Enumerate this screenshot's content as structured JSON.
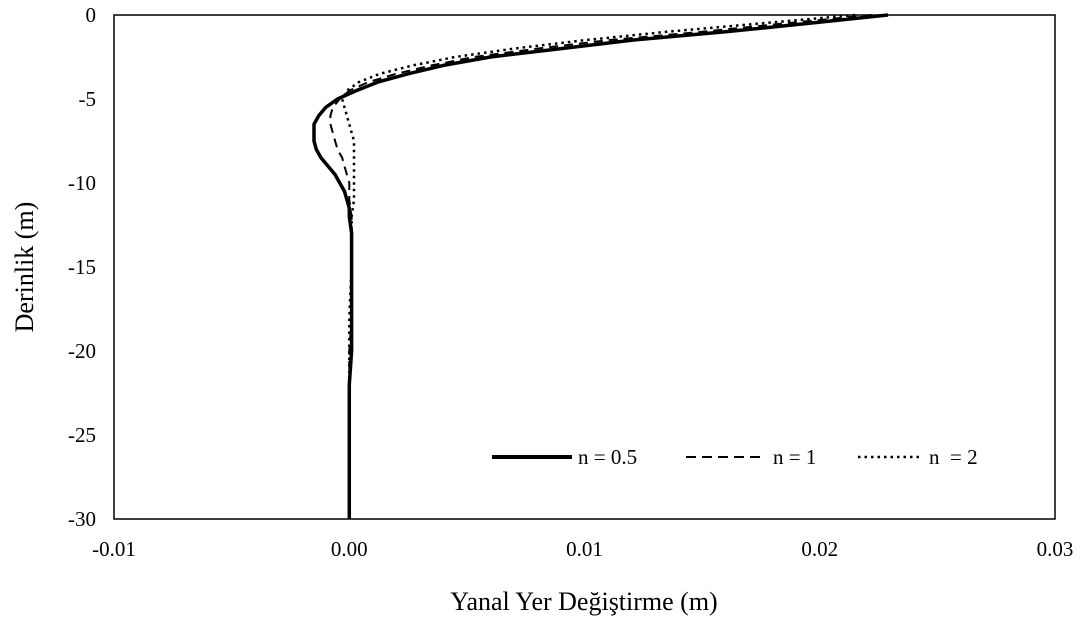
{
  "chart_data": {
    "type": "line",
    "xlabel": "Yanal Yer Değiştirme (m)",
    "ylabel": "Derinlik (m)",
    "xlim": [
      -0.01,
      0.03
    ],
    "ylim": [
      -30,
      0
    ],
    "xticks": [
      "-0.01",
      "0.00",
      "0.01",
      "0.02",
      "0.03"
    ],
    "xtick_values": [
      -0.01,
      0.0,
      0.01,
      0.02,
      0.03
    ],
    "yticks": [
      "0",
      "-5",
      "-10",
      "-15",
      "-20",
      "-25",
      "-30"
    ],
    "ytick_values": [
      0,
      -5,
      -10,
      -15,
      -20,
      -25,
      -30
    ],
    "grid": false,
    "legend_position": "bottom-right, inside plot",
    "series": [
      {
        "name": "n = 0.5",
        "style": "solid",
        "color": "#000000",
        "points": [
          [
            0.0229,
            0
          ],
          [
            0.0195,
            -0.5
          ],
          [
            0.016,
            -1
          ],
          [
            0.012,
            -1.5
          ],
          [
            0.009,
            -2
          ],
          [
            0.006,
            -2.5
          ],
          [
            0.004,
            -3
          ],
          [
            0.0025,
            -3.5
          ],
          [
            0.0012,
            -4
          ],
          [
            0.0003,
            -4.5
          ],
          [
            -0.0005,
            -5
          ],
          [
            -0.001,
            -5.5
          ],
          [
            -0.0013,
            -6
          ],
          [
            -0.0015,
            -6.5
          ],
          [
            -0.0015,
            -7
          ],
          [
            -0.0015,
            -7.5
          ],
          [
            -0.0014,
            -8
          ],
          [
            -0.0012,
            -8.5
          ],
          [
            -0.0009,
            -9
          ],
          [
            -0.0006,
            -9.5
          ],
          [
            -0.0004,
            -10
          ],
          [
            -0.0002,
            -10.5
          ],
          [
            -0.0001,
            -11
          ],
          [
            0.0,
            -11.5
          ],
          [
            0.0,
            -12
          ],
          [
            0.0001,
            -13
          ],
          [
            0.0001,
            -14
          ],
          [
            0.0001,
            -15
          ],
          [
            0.0001,
            -16
          ],
          [
            0.0001,
            -18
          ],
          [
            0.0001,
            -20
          ],
          [
            0.0,
            -22
          ],
          [
            0.0,
            -25
          ],
          [
            0.0,
            -28
          ],
          [
            0.0,
            -30
          ]
        ]
      },
      {
        "name": "n = 1",
        "style": "dashed",
        "color": "#000000",
        "points": [
          [
            0.0222,
            0
          ],
          [
            0.0185,
            -0.5
          ],
          [
            0.015,
            -1
          ],
          [
            0.011,
            -1.5
          ],
          [
            0.008,
            -2
          ],
          [
            0.0053,
            -2.5
          ],
          [
            0.0035,
            -3
          ],
          [
            0.002,
            -3.5
          ],
          [
            0.0008,
            -4
          ],
          [
            0.0,
            -4.5
          ],
          [
            -0.0004,
            -5
          ],
          [
            -0.0007,
            -5.5
          ],
          [
            -0.0008,
            -6
          ],
          [
            -0.0008,
            -6.5
          ],
          [
            -0.0007,
            -7
          ],
          [
            -0.0006,
            -7.5
          ],
          [
            -0.0005,
            -8
          ],
          [
            -0.0003,
            -8.5
          ],
          [
            -0.0002,
            -9
          ],
          [
            -0.0001,
            -9.5
          ],
          [
            0.0,
            -10
          ],
          [
            0.0,
            -11
          ],
          [
            0.0001,
            -12
          ],
          [
            0.0001,
            -13
          ],
          [
            0.0001,
            -15
          ],
          [
            0.0001,
            -18
          ],
          [
            0.0,
            -20
          ],
          [
            0.0,
            -25
          ],
          [
            0.0,
            -30
          ]
        ]
      },
      {
        "name": "n  = 2",
        "style": "dotted",
        "color": "#000000",
        "points": [
          [
            0.0215,
            0
          ],
          [
            0.0175,
            -0.5
          ],
          [
            0.0135,
            -1
          ],
          [
            0.01,
            -1.5
          ],
          [
            0.007,
            -2
          ],
          [
            0.0045,
            -2.5
          ],
          [
            0.0027,
            -3
          ],
          [
            0.0013,
            -3.5
          ],
          [
            0.0004,
            -4
          ],
          [
            -0.0001,
            -4.5
          ],
          [
            -0.0003,
            -5
          ],
          [
            -0.0002,
            -5.5
          ],
          [
            -0.0001,
            -6
          ],
          [
            0.0,
            -6.5
          ],
          [
            0.0001,
            -7
          ],
          [
            0.0002,
            -7.5
          ],
          [
            0.0002,
            -8
          ],
          [
            0.0002,
            -9
          ],
          [
            0.0002,
            -10
          ],
          [
            0.0002,
            -11
          ],
          [
            0.0001,
            -12
          ],
          [
            0.0001,
            -13
          ],
          [
            0.0001,
            -15
          ],
          [
            0.0,
            -18
          ],
          [
            0.0,
            -20
          ],
          [
            0.0,
            -25
          ],
          [
            0.0,
            -30
          ]
        ]
      }
    ]
  }
}
